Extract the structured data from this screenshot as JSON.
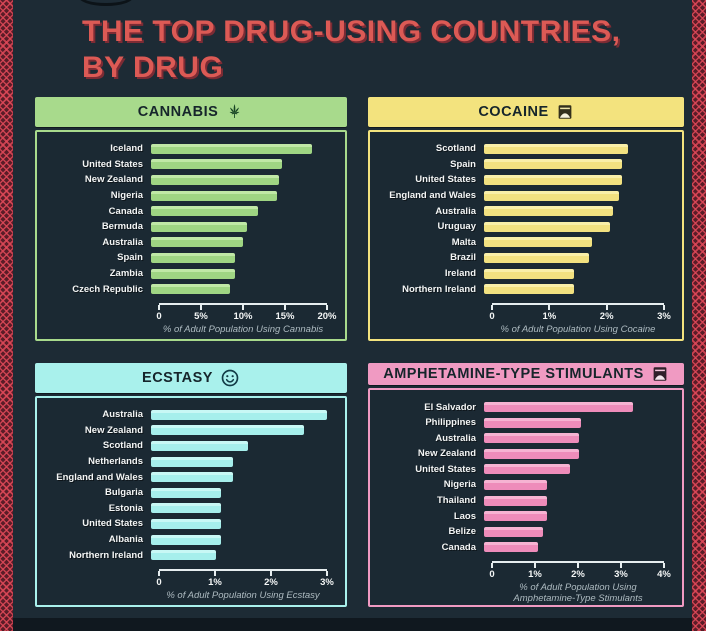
{
  "title": {
    "line1": "THE TOP DRUG-USING COUNTRIES,",
    "line2": "BY DRUG"
  },
  "colors": {
    "background": "#1d2b35",
    "title_red": "#dc5a55",
    "border_pattern_red": "#de4858",
    "cannabis_green": "#a8da8c",
    "cocaine_yellow": "#f3e37e",
    "ecstasy_cyan": "#a9f1ec",
    "amphetamine_pink": "#f09ac2",
    "label_white": "#f4f6f6"
  },
  "chart_data": [
    {
      "id": "cannabis",
      "type": "bar",
      "title": "CANNABIS",
      "icon": "cannabis-leaf-icon",
      "color": "#a8da8c",
      "bar_color": "#9fd583",
      "bar_highlight": "#c0e8a6",
      "xlabel": "% of Adult Population Using Cannabis",
      "xticks": [
        "0",
        "5%",
        "10%",
        "15%",
        "20%"
      ],
      "xmax": 20,
      "categories": [
        "Iceland",
        "United States",
        "New Zealand",
        "Nigeria",
        "Canada",
        "Bermuda",
        "Australia",
        "Spain",
        "Zambia",
        "Czech Republic"
      ],
      "values": [
        18.3,
        14.9,
        14.6,
        14.3,
        12.2,
        10.9,
        10.4,
        9.5,
        9.5,
        9.0
      ]
    },
    {
      "id": "cocaine",
      "type": "bar",
      "title": "COCAINE",
      "icon": "powder-baggie-icon",
      "color": "#f3e37e",
      "bar_color": "#f2e180",
      "bar_highlight": "#f9efa8",
      "xlabel": "% of Adult Population Using Cocaine",
      "xticks": [
        "0",
        "1%",
        "2%",
        "3%"
      ],
      "xmax": 3,
      "categories": [
        "Scotland",
        "Spain",
        "United States",
        "England and Wales",
        "Australia",
        "Uruguay",
        "Malta",
        "Brazil",
        "Ireland",
        "Northern Ireland"
      ],
      "values": [
        2.4,
        2.3,
        2.3,
        2.25,
        2.15,
        2.1,
        1.8,
        1.75,
        1.5,
        1.5
      ]
    },
    {
      "id": "ecstasy",
      "type": "bar",
      "title": "ECSTASY",
      "icon": "smiley-icon",
      "color": "#a9f1ec",
      "bar_color": "#a6efec",
      "bar_highlight": "#c8f8f5",
      "xlabel": "% of Adult Population Using Ecstasy",
      "xticks": [
        "0",
        "1%",
        "2%",
        "3%"
      ],
      "xmax": 3,
      "categories": [
        "Australia",
        "New Zealand",
        "Scotland",
        "Netherlands",
        "England and Wales",
        "Bulgaria",
        "Estonia",
        "United States",
        "Albania",
        "Northern Ireland"
      ],
      "values": [
        3.0,
        2.6,
        1.65,
        1.4,
        1.4,
        1.2,
        1.2,
        1.2,
        1.2,
        1.1
      ]
    },
    {
      "id": "amphetamine",
      "type": "bar",
      "title": "AMPHETAMINE-TYPE STIMULANTS",
      "icon": "pill-baggie-icon",
      "color": "#f09ac2",
      "bar_color": "#ee8cba",
      "bar_highlight": "#f6b3d2",
      "xlabel": "% of Adult Population Using Amphetamine-Type Stimulants",
      "xticks": [
        "0",
        "1%",
        "2%",
        "3%",
        "4%"
      ],
      "xmax": 4,
      "categories": [
        "El Salvador",
        "Philippines",
        "Australia",
        "New Zealand",
        "United States",
        "Nigeria",
        "Thailand",
        "Laos",
        "Belize",
        "Canada"
      ],
      "values": [
        3.3,
        2.15,
        2.1,
        2.1,
        1.9,
        1.4,
        1.4,
        1.4,
        1.3,
        1.2
      ]
    }
  ]
}
